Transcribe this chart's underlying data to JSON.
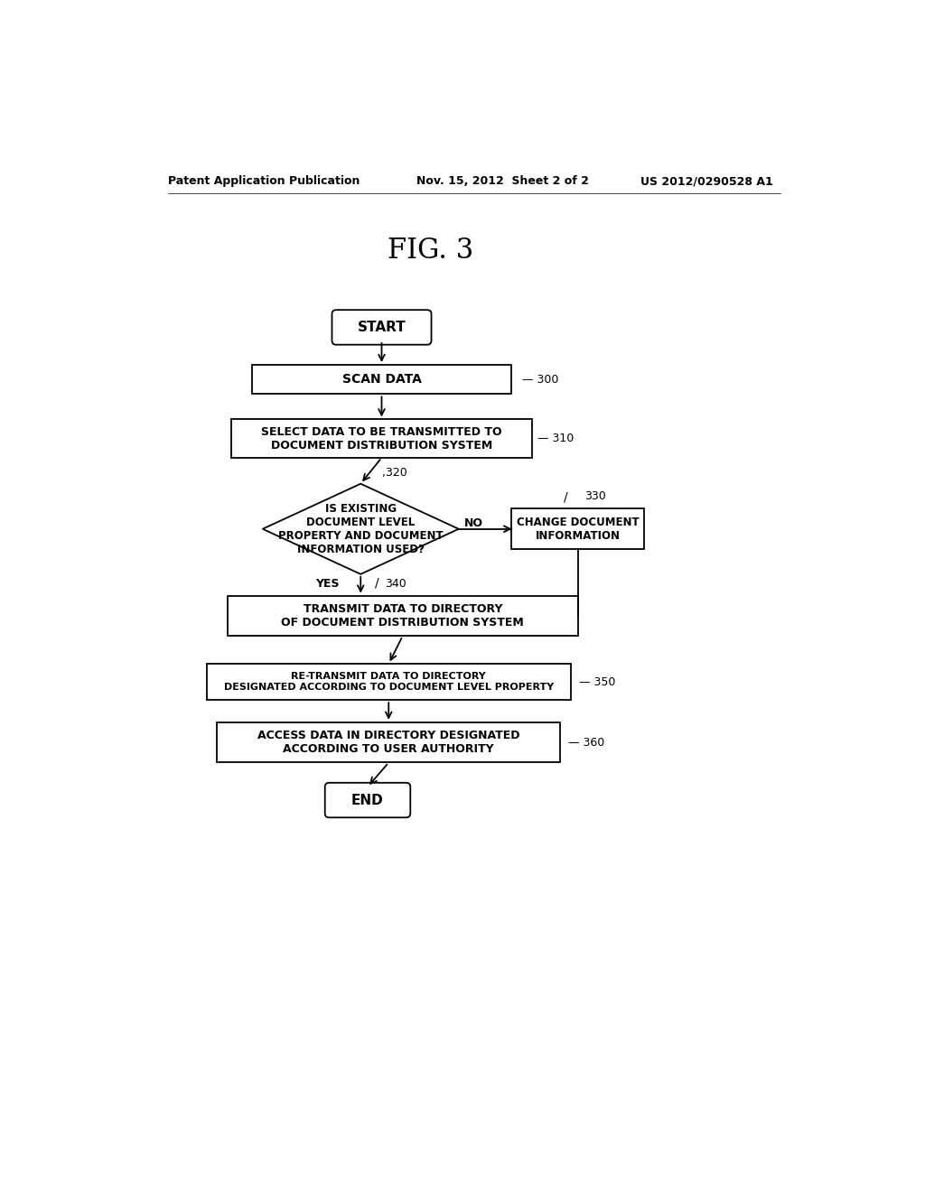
{
  "title": "FIG. 3",
  "header_left": "Patent Application Publication",
  "header_mid": "Nov. 15, 2012  Sheet 2 of 2",
  "header_right": "US 2012/0290528 A1",
  "bg_color": "#ffffff",
  "text_color": "#000000",
  "lw": 1.3,
  "font_size": 7.5,
  "header_fontsize": 9,
  "title_fontsize": 22
}
